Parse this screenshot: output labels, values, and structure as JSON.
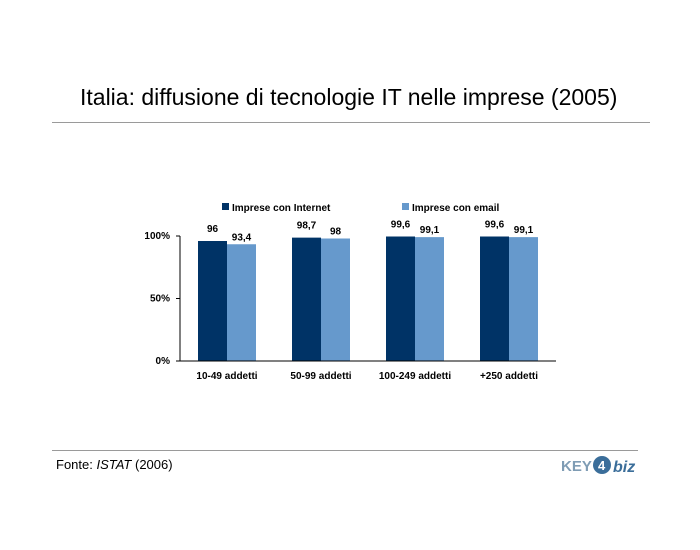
{
  "slide": {
    "title": "Italia: diffusione di tecnologie IT nelle imprese (2005)",
    "footer_prefix": "Fonte: ",
    "footer_source": "ISTAT",
    "footer_suffix": " (2006)",
    "logo_text_left": "KEY",
    "logo_digit": "4",
    "logo_text_right": "biz"
  },
  "chart_data": {
    "type": "bar",
    "title": "",
    "xlabel": "",
    "ylabel": "",
    "categories": [
      "10-49 addetti",
      "50-99 addetti",
      "100-249 addetti",
      "+250 addetti"
    ],
    "series": [
      {
        "name": "Imprese con Internet",
        "color": "#003366",
        "values": [
          96,
          98.7,
          99.6,
          99.6
        ],
        "labels": [
          "96",
          "98,7",
          "99,6",
          "99,6"
        ]
      },
      {
        "name": "Imprese con email",
        "color": "#6699CC",
        "values": [
          93.4,
          98,
          99.1,
          99.1
        ],
        "labels": [
          "93,4",
          "98",
          "99,1",
          "99,1"
        ]
      }
    ],
    "ylim": [
      0,
      100
    ],
    "yticks": [
      0,
      50,
      100
    ],
    "ytick_labels": [
      "0%",
      "50%",
      "100%"
    ],
    "grid": false,
    "legend_position": "top"
  }
}
